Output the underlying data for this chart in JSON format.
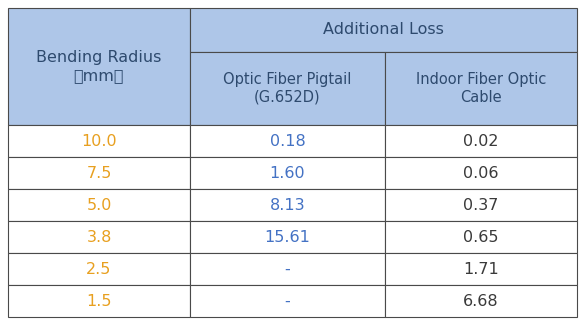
{
  "header_bg_color": "#aec6e8",
  "body_bg_color": "#ffffff",
  "border_color": "#4a4a4a",
  "header_text_color": "#2e4a6e",
  "bending_radius_values_color": "#e8a020",
  "pigtail_values_color": "#4472c4",
  "indoor_values_color": "#3a3a3a",
  "additional_loss_header": "Additional Loss",
  "col1_header_line1": "Bending Radius",
  "col1_header_line2": "（mm）",
  "col2_header_line1": "Optic Fiber Pigtail",
  "col2_header_line2": "(G.652D)",
  "col3_header_line1": "Indoor Fiber Optic",
  "col3_header_line2": "Cable",
  "bending_radii": [
    "10.0",
    "7.5",
    "5.0",
    "3.8",
    "2.5",
    "1.5"
  ],
  "pigtail_values": [
    "0.18",
    "1.60",
    "8.13",
    "15.61",
    "-",
    "-"
  ],
  "indoor_values": [
    "0.02",
    "0.06",
    "0.37",
    "0.65",
    "1.71",
    "6.68"
  ],
  "fig_width": 5.85,
  "fig_height": 3.25,
  "dpi": 100
}
